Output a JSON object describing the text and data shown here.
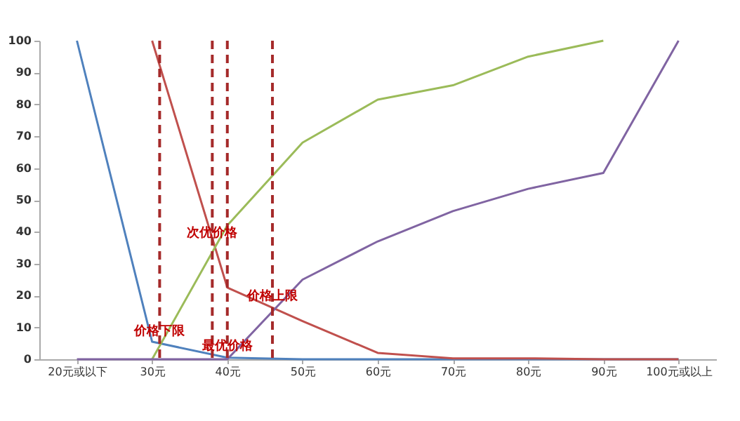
{
  "chart_data": {
    "type": "line",
    "x": [
      20,
      30,
      40,
      50,
      60,
      70,
      80,
      90,
      100
    ],
    "xlim": [
      15,
      105
    ],
    "xticks": [
      {
        "value": 20,
        "label": "20元或以下"
      },
      {
        "value": 30,
        "label": "30元"
      },
      {
        "value": 40,
        "label": "40元"
      },
      {
        "value": 50,
        "label": "50元"
      },
      {
        "value": 60,
        "label": "60元"
      },
      {
        "value": 70,
        "label": "70元"
      },
      {
        "value": 80,
        "label": "80元"
      },
      {
        "value": 90,
        "label": "90元"
      },
      {
        "value": 100,
        "label": "100元或以上"
      }
    ],
    "ylim": [
      0,
      100
    ],
    "yticks": [
      0,
      10,
      20,
      30,
      40,
      50,
      60,
      70,
      80,
      90,
      100
    ],
    "grid": false,
    "line_style": "solid",
    "marker": "none",
    "series": [
      {
        "color": "#4f81bd",
        "values": [
          100,
          5.5,
          0.5,
          0,
          0,
          0,
          0,
          0,
          0
        ]
      },
      {
        "color": "#c0504d",
        "values": [
          null,
          100,
          22.5,
          12,
          2,
          0.3,
          0.3,
          0,
          0
        ]
      },
      {
        "color": "#9bbb59",
        "values": [
          null,
          0,
          42,
          68,
          81.5,
          86,
          95,
          100,
          null
        ]
      },
      {
        "color": "#8064a2",
        "values": [
          0,
          0,
          0,
          25,
          37,
          46.5,
          53.5,
          58.5,
          100
        ]
      }
    ],
    "ref_lines": [
      {
        "axis": "x",
        "value": 31,
        "color": "#a52a2a",
        "line_style": "dashed"
      },
      {
        "axis": "x",
        "value": 38,
        "color": "#a52a2a",
        "line_style": "dashed"
      },
      {
        "axis": "x",
        "value": 40,
        "color": "#a52a2a",
        "line_style": "dashed"
      },
      {
        "axis": "x",
        "value": 46,
        "color": "#a52a2a",
        "line_style": "dashed"
      }
    ],
    "annotations": [
      {
        "text": "价格下限",
        "x": 31,
        "y": 5
      },
      {
        "text": "次优价格",
        "x": 38,
        "y": 36
      },
      {
        "text": "最优价格",
        "x": 40,
        "y": 0.5
      },
      {
        "text": "价格上限",
        "x": 46,
        "y": 16
      }
    ]
  }
}
